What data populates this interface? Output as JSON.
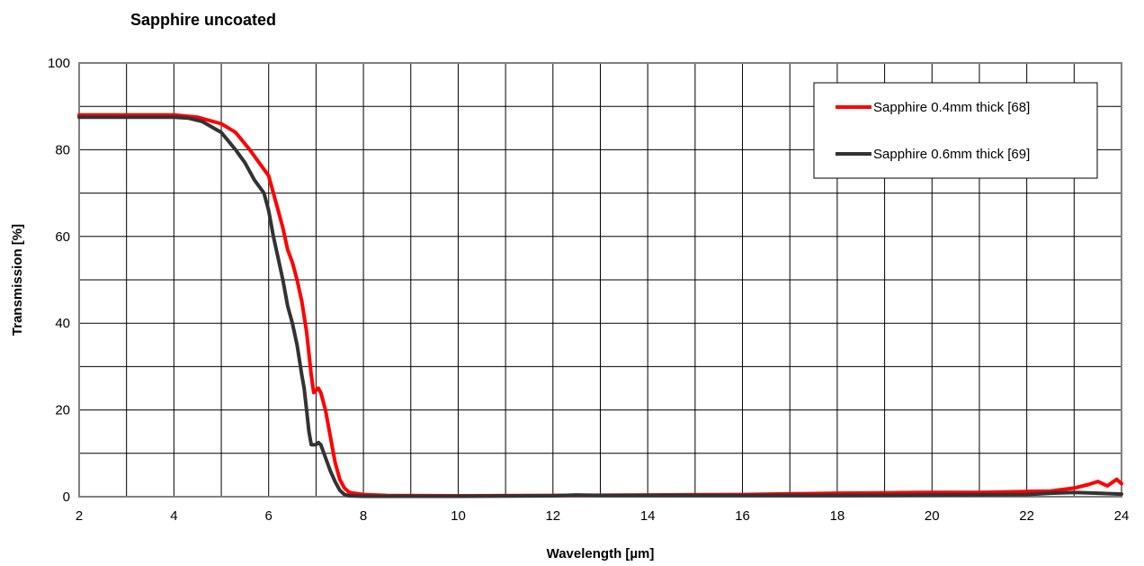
{
  "chart_data": {
    "type": "line",
    "title": "Sapphire uncoated",
    "xlabel": "Wavelength [µm]",
    "ylabel": "Transmission [%]",
    "xlim": [
      2,
      24
    ],
    "ylim": [
      0,
      100
    ],
    "x_ticks": [
      2,
      4,
      6,
      8,
      10,
      12,
      14,
      16,
      18,
      20,
      22,
      24
    ],
    "y_ticks": [
      0,
      20,
      40,
      60,
      80,
      100
    ],
    "grid": true,
    "legend_position": "top-right",
    "series": [
      {
        "name": "Sapphire 0.4mm thick [68]",
        "color": "#ff0000",
        "x": [
          2.0,
          3.0,
          4.0,
          4.2,
          4.5,
          5.0,
          5.3,
          5.6,
          5.8,
          6.0,
          6.1,
          6.2,
          6.3,
          6.4,
          6.5,
          6.6,
          6.7,
          6.8,
          6.9,
          6.95,
          7.0,
          7.05,
          7.1,
          7.2,
          7.3,
          7.4,
          7.5,
          7.6,
          7.7,
          7.8,
          8.0,
          8.5,
          10.0,
          12.0,
          14.0,
          16.0,
          18.0,
          19.0,
          20.0,
          21.0,
          22.0,
          22.5,
          23.0,
          23.3,
          23.5,
          23.7,
          23.9,
          24.0
        ],
        "values": [
          88.0,
          88.0,
          88.0,
          87.8,
          87.5,
          86.0,
          84.0,
          80.0,
          77.0,
          74.0,
          70.0,
          66.0,
          62.0,
          57.0,
          54.0,
          50.0,
          45.0,
          38.0,
          28.0,
          24.0,
          24.5,
          25.0,
          24.0,
          20.0,
          14.0,
          8.0,
          4.0,
          2.0,
          1.0,
          0.8,
          0.5,
          0.3,
          0.2,
          0.3,
          0.4,
          0.5,
          0.8,
          0.9,
          1.0,
          1.0,
          1.2,
          1.3,
          2.0,
          2.8,
          3.5,
          2.5,
          4.0,
          3.0
        ]
      },
      {
        "name": "Sapphire 0.6mm thick [69]",
        "color": "#333333",
        "x": [
          2.0,
          3.0,
          4.0,
          4.3,
          4.6,
          5.0,
          5.3,
          5.5,
          5.7,
          5.9,
          6.0,
          6.1,
          6.2,
          6.3,
          6.4,
          6.5,
          6.6,
          6.7,
          6.75,
          6.8,
          6.85,
          6.9,
          7.0,
          7.05,
          7.1,
          7.2,
          7.3,
          7.4,
          7.5,
          7.6,
          7.7,
          8.0,
          10.0,
          12.0,
          12.5,
          13.0,
          14.0,
          16.0,
          18.0,
          20.0,
          22.0,
          22.5,
          23.0,
          23.5,
          24.0
        ],
        "values": [
          87.5,
          87.5,
          87.5,
          87.3,
          86.5,
          84.0,
          80.0,
          77.0,
          73.0,
          70.0,
          66.0,
          60.0,
          55.0,
          50.0,
          44.0,
          40.0,
          35.0,
          28.0,
          25.0,
          20.0,
          15.0,
          12.0,
          12.0,
          12.5,
          12.0,
          9.0,
          6.0,
          3.5,
          1.5,
          0.5,
          0.2,
          0.1,
          0.1,
          0.2,
          0.4,
          0.3,
          0.3,
          0.3,
          0.3,
          0.4,
          0.5,
          0.8,
          1.0,
          0.8,
          0.6
        ]
      }
    ]
  }
}
